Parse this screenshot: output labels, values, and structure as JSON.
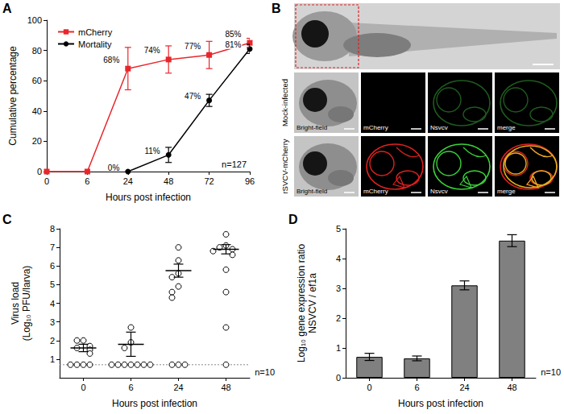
{
  "chart_data": [
    {
      "panel": "A",
      "type": "line",
      "categories": [
        "0",
        "6",
        "24",
        "48",
        "72",
        "96"
      ],
      "xlabel": "Hours post infection",
      "ylabel": "Cumulative percentage",
      "ylim": [
        0,
        100
      ],
      "yticks": [
        0,
        20,
        40,
        60,
        80,
        100
      ],
      "grid": false,
      "legend": "top-left",
      "data_labels": true,
      "annotations": [
        "n=127"
      ],
      "series": [
        {
          "name": "mCherry",
          "color": "#e8262b",
          "marker": "square",
          "values": [
            0,
            0,
            68,
            74,
            77,
            85
          ],
          "errors": [
            0,
            0,
            14,
            9,
            9,
            3
          ],
          "value_labels": [
            null,
            null,
            "68%",
            "74%",
            "77%",
            "85%"
          ]
        },
        {
          "name": "Mortality",
          "color": "#000000",
          "marker": "circle",
          "values": [
            null,
            null,
            0,
            11,
            47,
            81
          ],
          "errors": [
            null,
            null,
            0,
            5,
            4,
            3
          ],
          "value_labels": [
            null,
            null,
            "0%",
            "11%",
            "47%",
            "81%"
          ]
        }
      ]
    },
    {
      "panel": "C",
      "type": "scatter",
      "categories": [
        "0",
        "6",
        "24",
        "48"
      ],
      "xlabel": "Hours post infection",
      "ylabel": "Virus load\n(Log₁₀ PFU/larva)",
      "ylim": [
        0,
        8
      ],
      "yticks": [
        1,
        2,
        3,
        4,
        5,
        6,
        7,
        8
      ],
      "grid": false,
      "marker": "circle",
      "color": "#000000",
      "annotations": [
        "n=10"
      ],
      "detection_limit": 0.7,
      "points": [
        [
          2.0,
          2.0,
          1.7,
          1.6,
          1.5,
          1.3,
          0.7,
          0.7,
          0.7,
          0.7
        ],
        [
          2.7,
          1.9,
          1.6,
          0.7,
          0.7,
          0.7,
          0.7,
          0.7,
          0.7,
          0.7
        ],
        [
          7.0,
          6.3,
          5.6,
          5.4,
          4.9,
          4.6,
          4.3,
          0.7,
          0.7,
          0.7
        ],
        [
          7.7,
          7.1,
          7.0,
          6.9,
          6.8,
          6.6,
          5.8,
          4.6,
          2.7,
          0.7
        ]
      ],
      "means": [
        1.6,
        1.8,
        5.75,
        6.9
      ],
      "sem": [
        0.2,
        0.65,
        0.35,
        0.25
      ]
    },
    {
      "panel": "D",
      "type": "bar",
      "categories": [
        "0",
        "6",
        "24",
        "48"
      ],
      "xlabel": "Hours post infection",
      "ylabel": "Log₁₀ gene expression ratio\nNSVCV / ef1a",
      "ylim": [
        0,
        5
      ],
      "yticks": [
        0,
        1,
        2,
        3,
        4,
        5
      ],
      "grid": false,
      "color": "#808080",
      "annotations": [
        "n=10"
      ],
      "values": [
        0.7,
        0.65,
        3.1,
        4.6
      ],
      "errors": [
        0.12,
        0.08,
        0.15,
        0.2
      ]
    }
  ],
  "image_panel": {
    "panel": "B",
    "rows": [
      "Mock-infected",
      "rSVCV-mCherry"
    ],
    "columns": [
      "Bright-field",
      "mCherry",
      "Nsvcv",
      "merge"
    ]
  }
}
